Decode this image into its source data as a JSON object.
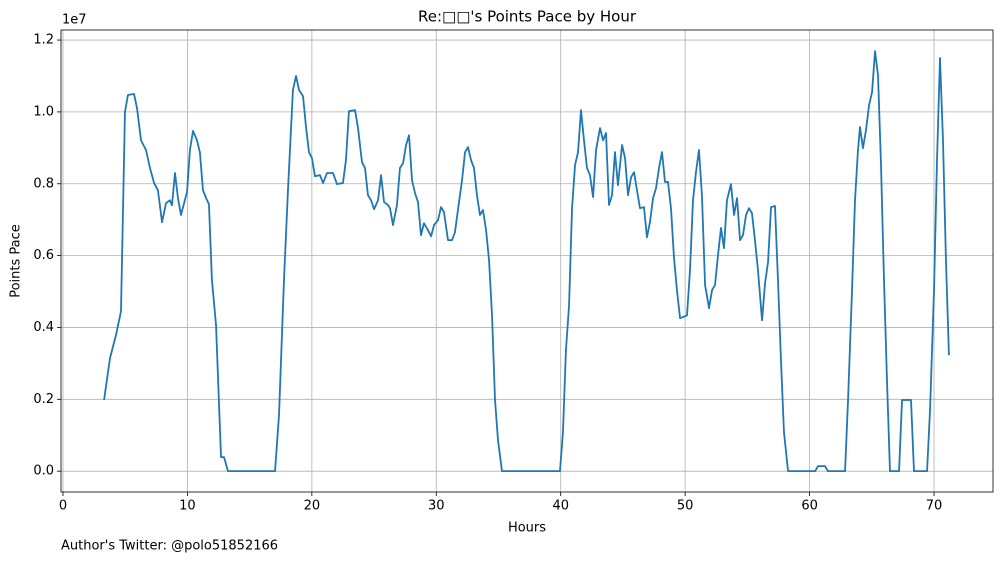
{
  "chart_data": {
    "type": "line",
    "title": "Re:□□'s Points Pace by Hour",
    "xlabel": "Hours",
    "ylabel": "Points Pace",
    "offset_label": "1e7",
    "footer": "Author's Twitter: @polo51852166",
    "color": "#1f77b4",
    "grid": true,
    "xlim": [
      -0.16,
      74.74
    ],
    "ylim": [
      -0.058,
      1.228
    ],
    "xticks": [
      0,
      10,
      20,
      30,
      40,
      50,
      60,
      70
    ],
    "yticks": [
      {
        "value": 0,
        "label": "0.0"
      },
      {
        "value": 0.2,
        "label": "0.2"
      },
      {
        "value": 0.4,
        "label": "0.4"
      },
      {
        "value": 0.6,
        "label": "0.6"
      },
      {
        "value": 0.8,
        "label": "0.8"
      },
      {
        "value": 1.0,
        "label": "1.0"
      },
      {
        "value": 1.2,
        "label": "1.2"
      }
    ],
    "x": [
      3.3,
      3.78,
      4.26,
      4.66,
      4.98,
      5.22,
      5.71,
      5.95,
      6.27,
      6.67,
      6.99,
      7.32,
      7.63,
      7.96,
      8.28,
      8.6,
      8.76,
      9.0,
      9.24,
      9.48,
      9.97,
      10.2,
      10.45,
      10.77,
      11.0,
      11.25,
      11.5,
      11.73,
      11.97,
      12.3,
      12.7,
      12.94,
      13.26,
      17.04,
      17.36,
      17.76,
      18.08,
      18.32,
      18.48,
      18.73,
      18.97,
      19.29,
      19.53,
      19.77,
      20.01,
      20.25,
      20.65,
      20.9,
      21.22,
      21.7,
      22.02,
      22.5,
      22.74,
      22.98,
      23.47,
      23.71,
      24.03,
      24.27,
      24.51,
      24.76,
      25.0,
      25.32,
      25.56,
      25.8,
      26.12,
      26.28,
      26.52,
      26.84,
      27.08,
      27.33,
      27.57,
      27.81,
      28.05,
      28.29,
      28.53,
      28.77,
      29.01,
      29.33,
      29.58,
      29.82,
      30.14,
      30.38,
      30.62,
      30.94,
      31.26,
      31.5,
      31.74,
      32.07,
      32.31,
      32.55,
      32.79,
      33.03,
      33.27,
      33.51,
      33.75,
      34.0,
      34.24,
      34.48,
      34.72,
      34.96,
      35.28,
      39.94,
      40.18,
      40.42,
      40.67,
      40.91,
      41.15,
      41.39,
      41.63,
      41.87,
      42.11,
      42.35,
      42.6,
      42.84,
      43.16,
      43.4,
      43.64,
      43.88,
      44.12,
      44.36,
      44.6,
      44.93,
      45.17,
      45.41,
      45.65,
      45.89,
      46.13,
      46.37,
      46.69,
      46.93,
      47.17,
      47.42,
      47.66,
      47.9,
      48.14,
      48.38,
      48.62,
      48.86,
      49.1,
      49.34,
      49.59,
      49.83,
      50.15,
      50.39,
      50.63,
      50.87,
      51.11,
      51.35,
      51.6,
      51.92,
      52.16,
      52.4,
      52.64,
      52.88,
      53.12,
      53.36,
      53.68,
      53.93,
      54.17,
      54.41,
      54.65,
      54.89,
      55.13,
      55.37,
      55.61,
      55.85,
      56.18,
      56.42,
      56.66,
      56.9,
      57.22,
      57.46,
      57.7,
      57.94,
      58.27,
      60.44,
      60.68,
      61.24,
      61.48,
      62.85,
      63.09,
      63.41,
      63.65,
      63.89,
      64.05,
      64.29,
      64.53,
      64.78,
      65.02,
      65.26,
      65.5,
      65.74,
      65.98,
      66.22,
      66.46,
      67.19,
      67.43,
      68.15,
      68.39,
      69.44,
      69.68,
      70.0,
      70.24,
      70.48,
      70.72,
      70.96,
      71.2
    ],
    "values": [
      0.198,
      0.315,
      0.379,
      0.445,
      1.0,
      1.047,
      1.05,
      1.01,
      0.921,
      0.894,
      0.844,
      0.802,
      0.782,
      0.693,
      0.746,
      0.754,
      0.74,
      0.83,
      0.76,
      0.713,
      0.777,
      0.894,
      0.947,
      0.921,
      0.888,
      0.782,
      0.76,
      0.743,
      0.532,
      0.406,
      0.039,
      0.039,
      0,
      0,
      0.156,
      0.532,
      0.782,
      0.949,
      1.061,
      1.1,
      1.061,
      1.044,
      0.958,
      0.888,
      0.871,
      0.821,
      0.824,
      0.802,
      0.83,
      0.83,
      0.799,
      0.802,
      0.866,
      1.002,
      1.005,
      0.955,
      0.86,
      0.844,
      0.768,
      0.754,
      0.729,
      0.754,
      0.824,
      0.749,
      0.741,
      0.732,
      0.685,
      0.741,
      0.844,
      0.857,
      0.908,
      0.935,
      0.81,
      0.774,
      0.749,
      0.657,
      0.69,
      0.671,
      0.654,
      0.685,
      0.699,
      0.735,
      0.721,
      0.643,
      0.643,
      0.665,
      0.727,
      0.81,
      0.888,
      0.902,
      0.866,
      0.844,
      0.768,
      0.713,
      0.727,
      0.671,
      0.587,
      0.434,
      0.198,
      0.086,
      0,
      0,
      0.109,
      0.337,
      0.462,
      0.732,
      0.852,
      0.888,
      1.005,
      0.921,
      0.844,
      0.824,
      0.763,
      0.894,
      0.955,
      0.921,
      0.941,
      0.741,
      0.768,
      0.888,
      0.796,
      0.908,
      0.871,
      0.768,
      0.818,
      0.832,
      0.782,
      0.732,
      0.735,
      0.651,
      0.693,
      0.76,
      0.788,
      0.844,
      0.888,
      0.805,
      0.805,
      0.732,
      0.596,
      0.504,
      0.426,
      0.429,
      0.434,
      0.56,
      0.754,
      0.832,
      0.894,
      0.768,
      0.518,
      0.454,
      0.504,
      0.518,
      0.601,
      0.677,
      0.621,
      0.754,
      0.799,
      0.713,
      0.76,
      0.643,
      0.657,
      0.713,
      0.732,
      0.718,
      0.643,
      0.56,
      0.42,
      0.523,
      0.582,
      0.735,
      0.738,
      0.532,
      0.309,
      0.109,
      0,
      0,
      0.014,
      0.014,
      0,
      0,
      0.198,
      0.504,
      0.754,
      0.894,
      0.958,
      0.899,
      0.949,
      1.019,
      1.055,
      1.169,
      1.102,
      0.852,
      0.532,
      0.253,
      0,
      0,
      0.198,
      0.198,
      0,
      0,
      0.17,
      0.504,
      0.866,
      1.15,
      0.921,
      0.587,
      0.323
    ]
  }
}
